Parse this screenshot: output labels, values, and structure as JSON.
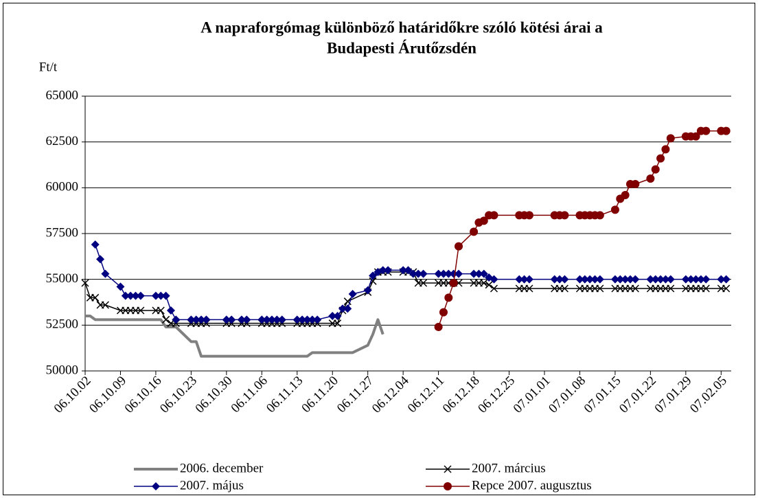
{
  "chart_data": {
    "type": "line",
    "title": [
      "A napraforgómag különböző határidőkre szóló kötési árai a",
      "Budapesti Árutőzsdén"
    ],
    "y_label": "Ft/t",
    "ylim": [
      50000,
      65000
    ],
    "yticks": [
      50000,
      52500,
      55000,
      57500,
      60000,
      62500,
      65000
    ],
    "xlim": [
      "06.10.02",
      "07.02.07"
    ],
    "xticks": [
      "06.10.02",
      "06.10.09",
      "06.10.16",
      "06.10.23",
      "06.10.30",
      "06.11.06",
      "06.11.13",
      "06.11.20",
      "06.11.27",
      "06.12.04",
      "06.12.11",
      "06.12.18",
      "06.12.25",
      "07.01.01",
      "07.01.08",
      "07.01.15",
      "07.01.22",
      "07.01.29",
      "07.02.05"
    ],
    "grid": true,
    "legend": "bottom",
    "series": [
      {
        "name": "2006. december",
        "color": "#808080",
        "marker": "none",
        "line_width": 4,
        "x": [
          "06.10.02",
          "06.10.03",
          "06.10.04",
          "06.10.10",
          "06.10.17",
          "06.10.18",
          "06.10.20",
          "06.10.23",
          "06.10.24",
          "06.10.25",
          "06.11.02",
          "06.11.09",
          "06.11.15",
          "06.11.16",
          "06.11.24",
          "06.11.27",
          "06.11.28",
          "06.11.29",
          "06.11.30"
        ],
        "values": [
          53000,
          53000,
          52800,
          52800,
          52800,
          52400,
          52400,
          51600,
          51600,
          50800,
          50800,
          50800,
          50800,
          51000,
          51000,
          51400,
          52000,
          52800,
          52000
        ]
      },
      {
        "name": "2007. március",
        "color": "#000000",
        "marker": "x",
        "line_width": 1.5,
        "x": [
          "06.10.02",
          "06.10.03",
          "06.10.04",
          "06.10.05",
          "06.10.06",
          "06.10.09",
          "06.10.10",
          "06.10.11",
          "06.10.12",
          "06.10.13",
          "06.10.16",
          "06.10.17",
          "06.10.18",
          "06.10.19",
          "06.10.20",
          "06.10.23",
          "06.10.24",
          "06.10.25",
          "06.10.26",
          "06.10.30",
          "06.10.31",
          "06.11.02",
          "06.11.03",
          "06.11.06",
          "06.11.07",
          "06.11.08",
          "06.11.09",
          "06.11.10",
          "06.11.13",
          "06.11.14",
          "06.11.15",
          "06.11.16",
          "06.11.17",
          "06.11.20",
          "06.11.21",
          "06.11.22",
          "06.11.23",
          "06.11.27",
          "06.11.28",
          "06.11.29",
          "06.11.30",
          "06.12.01",
          "06.12.04",
          "06.12.05",
          "06.12.06",
          "06.12.07",
          "06.12.08",
          "06.12.11",
          "06.12.12",
          "06.12.13",
          "06.12.14",
          "06.12.15",
          "06.12.18",
          "06.12.19",
          "06.12.20",
          "06.12.21",
          "06.12.22",
          "06.12.27",
          "06.12.28",
          "06.12.29",
          "07.01.03",
          "07.01.04",
          "07.01.05",
          "07.01.08",
          "07.01.09",
          "07.01.10",
          "07.01.11",
          "07.01.12",
          "07.01.15",
          "07.01.16",
          "07.01.17",
          "07.01.18",
          "07.01.19",
          "07.01.22",
          "07.01.23",
          "07.01.24",
          "07.01.25",
          "07.01.26",
          "07.01.29",
          "07.01.30",
          "07.01.31",
          "07.02.01",
          "07.02.02",
          "07.02.05",
          "07.02.06"
        ],
        "values": [
          54800,
          54000,
          54000,
          53600,
          53600,
          53300,
          53300,
          53300,
          53300,
          53300,
          53300,
          53300,
          52800,
          52600,
          52600,
          52600,
          52600,
          52600,
          52600,
          52600,
          52600,
          52600,
          52600,
          52600,
          52600,
          52600,
          52600,
          52600,
          52600,
          52600,
          52600,
          52600,
          52600,
          52600,
          52600,
          53300,
          53800,
          54300,
          54900,
          55400,
          55400,
          55400,
          55400,
          55400,
          55400,
          54800,
          54800,
          54800,
          54800,
          54800,
          54800,
          54800,
          54800,
          54800,
          54800,
          54700,
          54500,
          54500,
          54500,
          54500,
          54500,
          54500,
          54500,
          54500,
          54500,
          54500,
          54500,
          54500,
          54500,
          54500,
          54500,
          54500,
          54500,
          54500,
          54500,
          54500,
          54500,
          54500,
          54500,
          54500,
          54500,
          54500,
          54500,
          54500,
          54500
        ]
      },
      {
        "name": "2007. május",
        "color": "#000080",
        "marker": "diamond",
        "line_width": 1.5,
        "x": [
          "06.10.04",
          "06.10.05",
          "06.10.06",
          "06.10.09",
          "06.10.10",
          "06.10.11",
          "06.10.12",
          "06.10.13",
          "06.10.16",
          "06.10.17",
          "06.10.18",
          "06.10.19",
          "06.10.20",
          "06.10.23",
          "06.10.24",
          "06.10.25",
          "06.10.26",
          "06.10.30",
          "06.10.31",
          "06.11.02",
          "06.11.03",
          "06.11.06",
          "06.11.07",
          "06.11.08",
          "06.11.09",
          "06.11.10",
          "06.11.13",
          "06.11.14",
          "06.11.15",
          "06.11.16",
          "06.11.17",
          "06.11.20",
          "06.11.21",
          "06.11.22",
          "06.11.23",
          "06.11.24",
          "06.11.27",
          "06.11.28",
          "06.11.29",
          "06.11.30",
          "06.12.01",
          "06.12.04",
          "06.12.05",
          "06.12.06",
          "06.12.07",
          "06.12.08",
          "06.12.11",
          "06.12.12",
          "06.12.13",
          "06.12.14",
          "06.12.15",
          "06.12.18",
          "06.12.19",
          "06.12.20",
          "06.12.21",
          "06.12.22",
          "06.12.27",
          "06.12.28",
          "06.12.29",
          "07.01.03",
          "07.01.04",
          "07.01.05",
          "07.01.08",
          "07.01.09",
          "07.01.10",
          "07.01.11",
          "07.01.12",
          "07.01.15",
          "07.01.16",
          "07.01.17",
          "07.01.18",
          "07.01.19",
          "07.01.22",
          "07.01.23",
          "07.01.24",
          "07.01.25",
          "07.01.26",
          "07.01.29",
          "07.01.30",
          "07.01.31",
          "07.02.01",
          "07.02.02",
          "07.02.05",
          "07.02.06"
        ],
        "values": [
          56900,
          56100,
          55300,
          54600,
          54100,
          54100,
          54100,
          54100,
          54100,
          54100,
          54100,
          53300,
          52800,
          52800,
          52800,
          52800,
          52800,
          52800,
          52800,
          52800,
          52800,
          52800,
          52800,
          52800,
          52800,
          52800,
          52800,
          52800,
          52800,
          52800,
          52800,
          53000,
          53000,
          53400,
          53400,
          54200,
          54400,
          55200,
          55400,
          55500,
          55500,
          55500,
          55500,
          55300,
          55300,
          55300,
          55300,
          55300,
          55300,
          55300,
          55300,
          55300,
          55300,
          55300,
          55100,
          55000,
          55000,
          55000,
          55000,
          55000,
          55000,
          55000,
          55000,
          55000,
          55000,
          55000,
          55000,
          55000,
          55000,
          55000,
          55000,
          55000,
          55000,
          55000,
          55000,
          55000,
          55000,
          55000,
          55000,
          55000,
          55000,
          55000,
          55000,
          55000
        ]
      },
      {
        "name": "Repce 2007. augusztus",
        "color": "#800000",
        "marker": "circle",
        "line_width": 1.5,
        "x": [
          "06.12.11",
          "06.12.12",
          "06.12.13",
          "06.12.14",
          "06.12.15",
          "06.12.18",
          "06.12.19",
          "06.12.20",
          "06.12.21",
          "06.12.22",
          "06.12.27",
          "06.12.28",
          "06.12.29",
          "07.01.03",
          "07.01.04",
          "07.01.05",
          "07.01.08",
          "07.01.09",
          "07.01.10",
          "07.01.11",
          "07.01.12",
          "07.01.15",
          "07.01.16",
          "07.01.17",
          "07.01.18",
          "07.01.19",
          "07.01.22",
          "07.01.23",
          "07.01.24",
          "07.01.25",
          "07.01.26",
          "07.01.29",
          "07.01.30",
          "07.01.31",
          "07.02.01",
          "07.02.02",
          "07.02.05",
          "07.02.06"
        ],
        "values": [
          52400,
          53200,
          54000,
          54800,
          56800,
          57600,
          58100,
          58200,
          58500,
          58500,
          58500,
          58500,
          58500,
          58500,
          58500,
          58500,
          58500,
          58500,
          58500,
          58500,
          58500,
          58800,
          59400,
          59600,
          60200,
          60200,
          60500,
          61000,
          61600,
          62100,
          62700,
          62800,
          62800,
          62800,
          63100,
          63100,
          63100,
          63100
        ]
      }
    ]
  }
}
